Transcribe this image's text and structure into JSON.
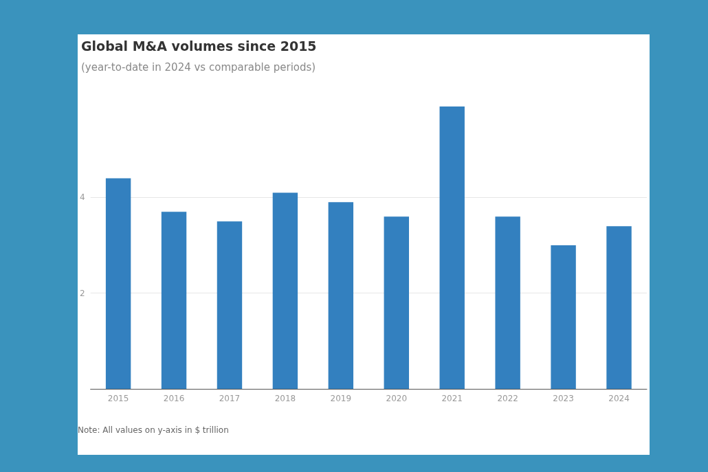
{
  "chart_data": {
    "type": "bar",
    "title": "Global M&A volumes since 2015",
    "subtitle": "(year-to-date in 2024 vs comparable periods)",
    "categories": [
      "2015",
      "2016",
      "2017",
      "2018",
      "2019",
      "2020",
      "2021",
      "2022",
      "2023",
      "2024"
    ],
    "values": [
      4.4,
      3.7,
      3.5,
      4.1,
      3.9,
      3.6,
      5.9,
      3.6,
      3.0,
      3.4
    ],
    "color": "#3380bf",
    "ylim": [
      0,
      5.9
    ],
    "yticks": [
      2,
      4
    ],
    "grid": "y",
    "annotations": [
      "Note: All values on y-axis in $ trillion"
    ]
  }
}
